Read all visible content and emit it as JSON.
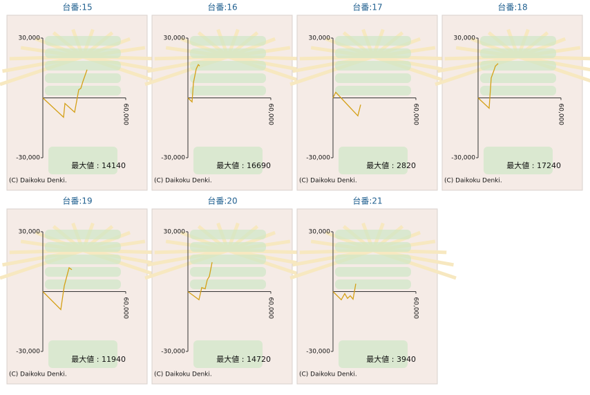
{
  "chart_data": [
    {
      "type": "line",
      "title": "台番:15",
      "annotation": "最大値 : 14140",
      "credit": "(C) Daikoku Denki.",
      "color": "#d4a017",
      "x": [
        0,
        15000,
        16000,
        23000,
        26000,
        27500,
        29000,
        32000
      ],
      "values": [
        0,
        -9700,
        -2800,
        -7200,
        4100,
        4800,
        8200,
        14140
      ],
      "xlim": [
        0,
        60000
      ],
      "xticks": [
        {
          "value": 60000,
          "label": "60,000"
        }
      ],
      "ylim": [
        -30000,
        30000
      ],
      "yticks": [
        {
          "value": -30000,
          "label": "-30,000"
        },
        {
          "value": 30000,
          "label": "30,000"
        }
      ]
    },
    {
      "type": "line",
      "title": "台番:16",
      "annotation": "最大値 : 16690",
      "credit": "(C) Daikoku Denki.",
      "color": "#d4a017",
      "x": [
        0,
        3000,
        4000,
        6000,
        7500,
        8500
      ],
      "values": [
        0,
        -2000,
        7600,
        14500,
        16690,
        16000
      ],
      "xlim": [
        0,
        60000
      ],
      "xticks": [
        {
          "value": 60000,
          "label": "60,000"
        }
      ],
      "ylim": [
        -30000,
        30000
      ],
      "yticks": [
        {
          "value": -30000,
          "label": "-30,000"
        },
        {
          "value": 30000,
          "label": "30,000"
        }
      ]
    },
    {
      "type": "line",
      "title": "台番:17",
      "annotation": "最大値 : 2820",
      "credit": "(C) Daikoku Denki.",
      "color": "#d4a017",
      "x": [
        0,
        2000,
        18000,
        20000
      ],
      "values": [
        0,
        2820,
        -9000,
        -3400
      ],
      "xlim": [
        0,
        60000
      ],
      "xticks": [
        {
          "value": 60000,
          "label": "60,000"
        }
      ],
      "ylim": [
        -30000,
        30000
      ],
      "yticks": [
        {
          "value": -30000,
          "label": "-30,000"
        },
        {
          "value": 30000,
          "label": "30,000"
        }
      ]
    },
    {
      "type": "line",
      "title": "台番:18",
      "annotation": "最大値 : 17240",
      "credit": "(C) Daikoku Denki.",
      "color": "#d4a017",
      "x": [
        0,
        8000,
        9500,
        11500,
        12500,
        14500
      ],
      "values": [
        0,
        -5200,
        10000,
        13800,
        15900,
        17240
      ],
      "xlim": [
        0,
        60000
      ],
      "xticks": [
        {
          "value": 60000,
          "label": "60,000"
        }
      ],
      "ylim": [
        -30000,
        30000
      ],
      "yticks": [
        {
          "value": -30000,
          "label": "-30,000"
        },
        {
          "value": 30000,
          "label": "30,000"
        }
      ]
    },
    {
      "type": "line",
      "title": "台番:19",
      "annotation": "最大値 : 11940",
      "credit": "(C) Daikoku Denki.",
      "color": "#d4a017",
      "x": [
        0,
        13000,
        15500,
        19000,
        21000
      ],
      "values": [
        0,
        -9000,
        2800,
        11940,
        11000
      ],
      "xlim": [
        0,
        60000
      ],
      "xticks": [
        {
          "value": 60000,
          "label": "60,000"
        }
      ],
      "ylim": [
        -30000,
        30000
      ],
      "yticks": [
        {
          "value": -30000,
          "label": "-30,000"
        },
        {
          "value": 30000,
          "label": "30,000"
        }
      ]
    },
    {
      "type": "line",
      "title": "台番:20",
      "annotation": "最大値 : 14720",
      "credit": "(C) Daikoku Denki.",
      "color": "#d4a017",
      "x": [
        0,
        8000,
        10000,
        12500,
        14000,
        15500,
        17500
      ],
      "values": [
        0,
        -4100,
        2000,
        1400,
        5900,
        7600,
        14720
      ],
      "xlim": [
        0,
        60000
      ],
      "xticks": [
        {
          "value": 60000,
          "label": "60,000"
        }
      ],
      "ylim": [
        -30000,
        30000
      ],
      "yticks": [
        {
          "value": -30000,
          "label": "-30,000"
        },
        {
          "value": 30000,
          "label": "30,000"
        }
      ]
    },
    {
      "type": "line",
      "title": "台番:21",
      "annotation": "最大値 : 3940",
      "credit": "(C) Daikoku Denki.",
      "color": "#d4a017",
      "x": [
        0,
        6000,
        8500,
        10500,
        12500,
        14500,
        16500
      ],
      "values": [
        0,
        -4100,
        -1000,
        -3400,
        -2100,
        -3800,
        3940
      ],
      "xlim": [
        0,
        60000
      ],
      "xticks": [
        {
          "value": 60000,
          "label": "60,000"
        }
      ],
      "ylim": [
        -30000,
        30000
      ],
      "yticks": [
        {
          "value": -30000,
          "label": "-30,000"
        },
        {
          "value": 30000,
          "label": "30,000"
        }
      ]
    }
  ]
}
